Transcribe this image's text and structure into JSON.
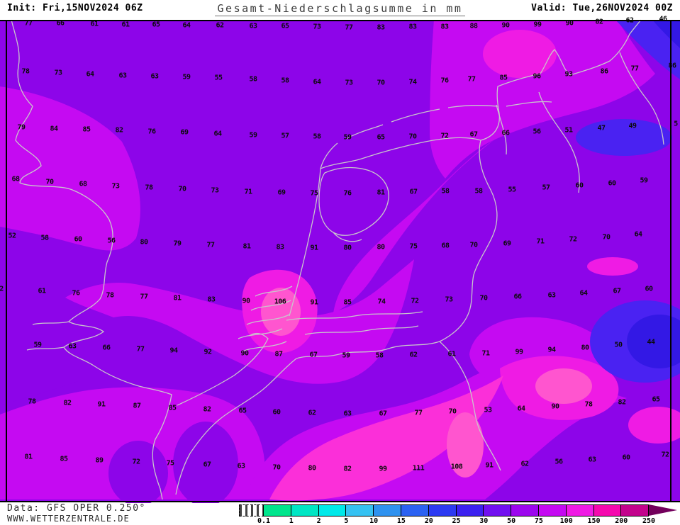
{
  "header": {
    "init": "Init: Fri,15NOV2024 06Z",
    "title": "Gesamt-Niederschlagsumme in mm",
    "valid": "Valid: Tue,26NOV2024 00Z"
  },
  "footer": {
    "data_source": "Data: GFS OPER 0.250°",
    "website": "WWW.WETTERZENTRALE.DE"
  },
  "legend": {
    "unit": "mm",
    "arrow_color": "#73005C",
    "segments": [
      {
        "label": "0.1",
        "color": "#00E58C"
      },
      {
        "label": "1",
        "color": "#00E6C4"
      },
      {
        "label": "2",
        "color": "#00E9E9"
      },
      {
        "label": "5",
        "color": "#35C2F2"
      },
      {
        "label": "10",
        "color": "#2E92EF"
      },
      {
        "label": "15",
        "color": "#2B62F2"
      },
      {
        "label": "20",
        "color": "#2C3AF2"
      },
      {
        "label": "25",
        "color": "#3B21F0"
      },
      {
        "label": "30",
        "color": "#7110F0"
      },
      {
        "label": "50",
        "color": "#9C06EE"
      },
      {
        "label": "75",
        "color": "#C50AF2"
      },
      {
        "label": "100",
        "color": "#EF1BE4"
      },
      {
        "label": "150",
        "color": "#F509AE"
      },
      {
        "label": "200",
        "color": "#C3038C"
      },
      {
        "label": "250",
        "color": "#73005C"
      }
    ]
  },
  "map": {
    "field_colors": {
      "base_50_75": "#8D05E9",
      "band_75_100": "#C50AF2",
      "pink_100_150": "#EF1BE4",
      "bright_pink_core": "#FF55CF",
      "blue_25_50": "#4A22F2",
      "blue_core": "#3318E5",
      "coastline": "#C9C5CC"
    },
    "values": [
      [
        40,
        33,
        "77"
      ],
      [
        85,
        33,
        "66"
      ],
      [
        133,
        34,
        "61"
      ],
      [
        177,
        35,
        "61"
      ],
      [
        220,
        35,
        "65"
      ],
      [
        263,
        36,
        "64"
      ],
      [
        310,
        36,
        "62"
      ],
      [
        357,
        37,
        "63"
      ],
      [
        402,
        37,
        "65"
      ],
      [
        447,
        38,
        "73"
      ],
      [
        492,
        39,
        "77"
      ],
      [
        537,
        39,
        "83"
      ],
      [
        582,
        38,
        "83"
      ],
      [
        627,
        38,
        "83"
      ],
      [
        668,
        37,
        "88"
      ],
      [
        713,
        36,
        "90"
      ],
      [
        758,
        35,
        "99"
      ],
      [
        803,
        33,
        "90"
      ],
      [
        845,
        31,
        "82"
      ],
      [
        888,
        29,
        "62"
      ],
      [
        935,
        27,
        "46"
      ],
      [
        36,
        101,
        "78"
      ],
      [
        82,
        103,
        "73"
      ],
      [
        127,
        105,
        "64"
      ],
      [
        173,
        107,
        "63"
      ],
      [
        218,
        108,
        "63"
      ],
      [
        263,
        109,
        "59"
      ],
      [
        308,
        110,
        "55"
      ],
      [
        357,
        112,
        "58"
      ],
      [
        402,
        114,
        "58"
      ],
      [
        447,
        116,
        "64"
      ],
      [
        492,
        117,
        "73"
      ],
      [
        537,
        117,
        "70"
      ],
      [
        582,
        116,
        "74"
      ],
      [
        627,
        114,
        "76"
      ],
      [
        665,
        112,
        "77"
      ],
      [
        710,
        110,
        "85"
      ],
      [
        757,
        108,
        "96"
      ],
      [
        802,
        105,
        "93"
      ],
      [
        852,
        101,
        "86"
      ],
      [
        895,
        97,
        "77"
      ],
      [
        948,
        93,
        "86"
      ],
      [
        30,
        180,
        "79"
      ],
      [
        76,
        182,
        "84"
      ],
      [
        122,
        183,
        "85"
      ],
      [
        168,
        184,
        "82"
      ],
      [
        214,
        186,
        "76"
      ],
      [
        260,
        187,
        "69"
      ],
      [
        307,
        189,
        "64"
      ],
      [
        357,
        191,
        "59"
      ],
      [
        402,
        192,
        "57"
      ],
      [
        447,
        193,
        "58"
      ],
      [
        490,
        194,
        "59"
      ],
      [
        537,
        194,
        "65"
      ],
      [
        582,
        193,
        "70"
      ],
      [
        627,
        192,
        "72"
      ],
      [
        668,
        190,
        "67"
      ],
      [
        713,
        188,
        "66"
      ],
      [
        757,
        186,
        "56"
      ],
      [
        802,
        184,
        "51"
      ],
      [
        848,
        181,
        "47"
      ],
      [
        892,
        178,
        "49"
      ],
      [
        953,
        175,
        "5"
      ],
      [
        22,
        253,
        "68"
      ],
      [
        70,
        257,
        "70"
      ],
      [
        117,
        260,
        "68"
      ],
      [
        163,
        263,
        "73"
      ],
      [
        210,
        265,
        "78"
      ],
      [
        257,
        267,
        "70"
      ],
      [
        303,
        269,
        "73"
      ],
      [
        350,
        271,
        "71"
      ],
      [
        397,
        272,
        "69"
      ],
      [
        443,
        273,
        "75"
      ],
      [
        490,
        273,
        "76"
      ],
      [
        537,
        272,
        "81"
      ],
      [
        583,
        271,
        "67"
      ],
      [
        628,
        270,
        "58"
      ],
      [
        675,
        270,
        "58"
      ],
      [
        722,
        268,
        "55"
      ],
      [
        770,
        265,
        "57"
      ],
      [
        817,
        262,
        "60"
      ],
      [
        863,
        259,
        "60"
      ],
      [
        908,
        255,
        "59"
      ],
      [
        17,
        333,
        "52"
      ],
      [
        63,
        336,
        "58"
      ],
      [
        110,
        338,
        "60"
      ],
      [
        157,
        340,
        "56"
      ],
      [
        203,
        342,
        "80"
      ],
      [
        250,
        344,
        "79"
      ],
      [
        297,
        346,
        "77"
      ],
      [
        348,
        348,
        "81"
      ],
      [
        395,
        349,
        "83"
      ],
      [
        443,
        350,
        "91"
      ],
      [
        490,
        350,
        "80"
      ],
      [
        537,
        349,
        "80"
      ],
      [
        583,
        348,
        "75"
      ],
      [
        628,
        347,
        "68"
      ],
      [
        668,
        346,
        "70"
      ],
      [
        715,
        344,
        "69"
      ],
      [
        762,
        341,
        "71"
      ],
      [
        808,
        338,
        "72"
      ],
      [
        855,
        335,
        "70"
      ],
      [
        900,
        331,
        "64"
      ],
      [
        2,
        408,
        "2"
      ],
      [
        59,
        411,
        "61"
      ],
      [
        107,
        414,
        "76"
      ],
      [
        155,
        417,
        "78"
      ],
      [
        203,
        419,
        "77"
      ],
      [
        250,
        421,
        "81"
      ],
      [
        298,
        423,
        "83"
      ],
      [
        347,
        425,
        "90"
      ],
      [
        395,
        426,
        "106"
      ],
      [
        443,
        427,
        "91"
      ],
      [
        490,
        427,
        "85"
      ],
      [
        538,
        426,
        "74"
      ],
      [
        585,
        425,
        "72"
      ],
      [
        633,
        423,
        "73"
      ],
      [
        682,
        421,
        "70"
      ],
      [
        730,
        419,
        "66"
      ],
      [
        778,
        417,
        "63"
      ],
      [
        823,
        414,
        "64"
      ],
      [
        870,
        411,
        "67"
      ],
      [
        915,
        408,
        "60"
      ],
      [
        53,
        487,
        "59"
      ],
      [
        102,
        489,
        "63"
      ],
      [
        150,
        491,
        "66"
      ],
      [
        198,
        493,
        "77"
      ],
      [
        245,
        495,
        "94"
      ],
      [
        293,
        497,
        "92"
      ],
      [
        345,
        499,
        "90"
      ],
      [
        393,
        500,
        "87"
      ],
      [
        442,
        501,
        "67"
      ],
      [
        488,
        502,
        "59"
      ],
      [
        535,
        502,
        "58"
      ],
      [
        583,
        501,
        "62"
      ],
      [
        637,
        500,
        "61"
      ],
      [
        685,
        499,
        "71"
      ],
      [
        732,
        497,
        "99"
      ],
      [
        778,
        494,
        "94"
      ],
      [
        825,
        491,
        "80"
      ],
      [
        872,
        487,
        "50"
      ],
      [
        918,
        483,
        "44"
      ],
      [
        45,
        567,
        "78"
      ],
      [
        95,
        569,
        "82"
      ],
      [
        143,
        571,
        "91"
      ],
      [
        193,
        573,
        "87"
      ],
      [
        243,
        576,
        "85"
      ],
      [
        292,
        578,
        "82"
      ],
      [
        342,
        580,
        "65"
      ],
      [
        390,
        582,
        "60"
      ],
      [
        440,
        583,
        "62"
      ],
      [
        490,
        584,
        "63"
      ],
      [
        540,
        584,
        "67"
      ],
      [
        590,
        583,
        "77"
      ],
      [
        638,
        581,
        "70"
      ],
      [
        688,
        579,
        "53"
      ],
      [
        735,
        577,
        "64"
      ],
      [
        783,
        574,
        "90"
      ],
      [
        830,
        571,
        "78"
      ],
      [
        877,
        568,
        "82"
      ],
      [
        925,
        564,
        "65"
      ],
      [
        40,
        645,
        "81"
      ],
      [
        90,
        648,
        "85"
      ],
      [
        140,
        650,
        "89"
      ],
      [
        192,
        652,
        "72"
      ],
      [
        240,
        654,
        "75"
      ],
      [
        292,
        656,
        "67"
      ],
      [
        340,
        658,
        "63"
      ],
      [
        390,
        660,
        "70"
      ],
      [
        440,
        661,
        "80"
      ],
      [
        490,
        662,
        "82"
      ],
      [
        540,
        662,
        "99"
      ],
      [
        590,
        661,
        "111"
      ],
      [
        644,
        659,
        "108"
      ],
      [
        690,
        657,
        "91"
      ],
      [
        740,
        655,
        "62"
      ],
      [
        788,
        652,
        "56"
      ],
      [
        835,
        649,
        "63"
      ],
      [
        883,
        646,
        "60"
      ],
      [
        938,
        642,
        "72"
      ]
    ]
  }
}
